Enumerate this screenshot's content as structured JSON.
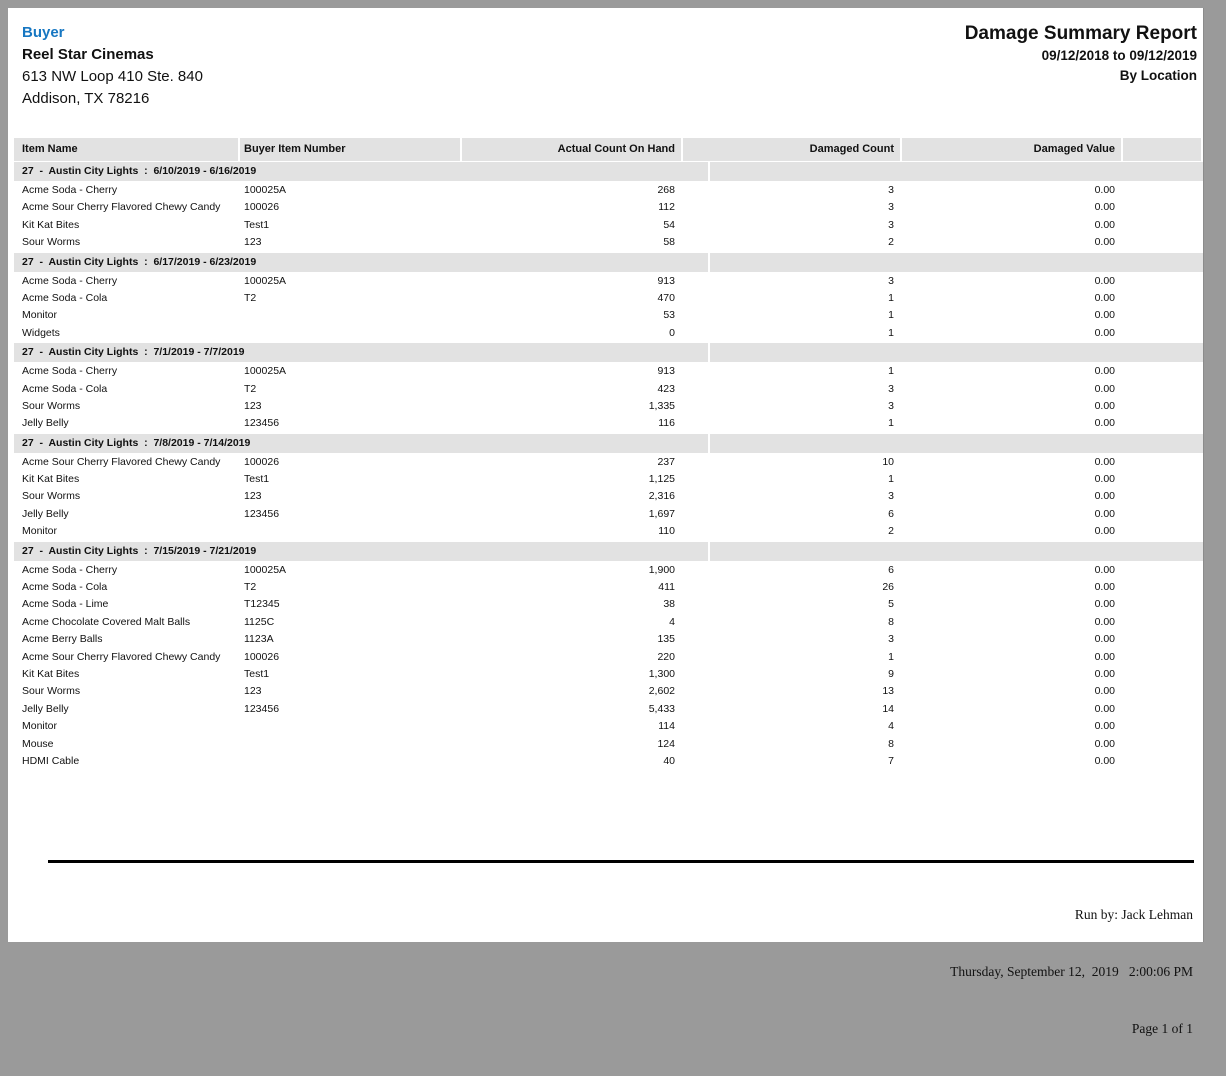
{
  "page": {
    "buyer_label": "Buyer",
    "buyer_name": "Reel Star Cinemas",
    "address_line1": "613 NW Loop 410 Ste. 840",
    "address_line2": "Addison, TX 78216",
    "report_title": "Damage Summary Report",
    "report_date_range": "09/12/2018 to 09/12/2019",
    "report_grouping": "By Location"
  },
  "table": {
    "columns": [
      "Item Name",
      "Buyer Item Number",
      "Actual Count On Hand",
      "Damaged Count",
      "Damaged Value"
    ],
    "groups": [
      {
        "label": "27  -  Austin City Lights  :  6/10/2019 - 6/16/2019",
        "rows": [
          [
            "Acme Soda - Cherry",
            "100025A",
            "268",
            "3",
            "0.00"
          ],
          [
            "Acme Sour Cherry Flavored Chewy Candy",
            "100026",
            "112",
            "3",
            "0.00"
          ],
          [
            "Kit Kat Bites",
            "Test1",
            "54",
            "3",
            "0.00"
          ],
          [
            "Sour Worms",
            "123",
            "58",
            "2",
            "0.00"
          ]
        ]
      },
      {
        "label": "27  -  Austin City Lights  :  6/17/2019 - 6/23/2019",
        "rows": [
          [
            "Acme Soda - Cherry",
            "100025A",
            "913",
            "3",
            "0.00"
          ],
          [
            "Acme Soda - Cola",
            "T2",
            "470",
            "1",
            "0.00"
          ],
          [
            "Monitor",
            "",
            "53",
            "1",
            "0.00"
          ],
          [
            "Widgets",
            "",
            "0",
            "1",
            "0.00"
          ]
        ]
      },
      {
        "label": "27  -  Austin City Lights  :  7/1/2019 - 7/7/2019",
        "rows": [
          [
            "Acme Soda - Cherry",
            "100025A",
            "913",
            "1",
            "0.00"
          ],
          [
            "Acme Soda - Cola",
            "T2",
            "423",
            "3",
            "0.00"
          ],
          [
            "Sour Worms",
            "123",
            "1,335",
            "3",
            "0.00"
          ],
          [
            "Jelly Belly",
            "123456",
            "116",
            "1",
            "0.00"
          ]
        ]
      },
      {
        "label": "27  -  Austin City Lights  :  7/8/2019 - 7/14/2019",
        "rows": [
          [
            "Acme Sour Cherry Flavored Chewy Candy",
            "100026",
            "237",
            "10",
            "0.00"
          ],
          [
            "Kit Kat Bites",
            "Test1",
            "1,125",
            "1",
            "0.00"
          ],
          [
            "Sour Worms",
            "123",
            "2,316",
            "3",
            "0.00"
          ],
          [
            "Jelly Belly",
            "123456",
            "1,697",
            "6",
            "0.00"
          ],
          [
            "Monitor",
            "",
            "110",
            "2",
            "0.00"
          ]
        ]
      },
      {
        "label": "27  -  Austin City Lights  :  7/15/2019 - 7/21/2019",
        "rows": [
          [
            "Acme Soda - Cherry",
            "100025A",
            "1,900",
            "6",
            "0.00"
          ],
          [
            "Acme Soda - Cola",
            "T2",
            "411",
            "26",
            "0.00"
          ],
          [
            "Acme Soda - Lime",
            "T12345",
            "38",
            "5",
            "0.00"
          ],
          [
            "Acme Chocolate Covered Malt Balls",
            "1125C",
            "4",
            "8",
            "0.00"
          ],
          [
            "Acme Berry Balls",
            "1123A",
            "135",
            "3",
            "0.00"
          ],
          [
            "Acme Sour Cherry Flavored Chewy Candy",
            "100026",
            "220",
            "1",
            "0.00"
          ],
          [
            "Kit Kat Bites",
            "Test1",
            "1,300",
            "9",
            "0.00"
          ],
          [
            "Sour Worms",
            "123",
            "2,602",
            "13",
            "0.00"
          ],
          [
            "Jelly Belly",
            "123456",
            "5,433",
            "14",
            "0.00"
          ],
          [
            "Monitor",
            "",
            "114",
            "4",
            "0.00"
          ],
          [
            "Mouse",
            "",
            "124",
            "8",
            "0.00"
          ],
          [
            "HDMI Cable",
            "",
            "40",
            "7",
            "0.00"
          ]
        ]
      }
    ]
  },
  "footer": {
    "run_by": "Run by: Jack Lehman",
    "run_datetime": "Thursday, September 12,  2019   2:00:06 PM",
    "page_info": "Page 1 of 1"
  },
  "colors": {
    "accent_blue": "#1777c2",
    "band_gray": "#e2e2e2",
    "frame_gray": "#9a9a9a"
  }
}
